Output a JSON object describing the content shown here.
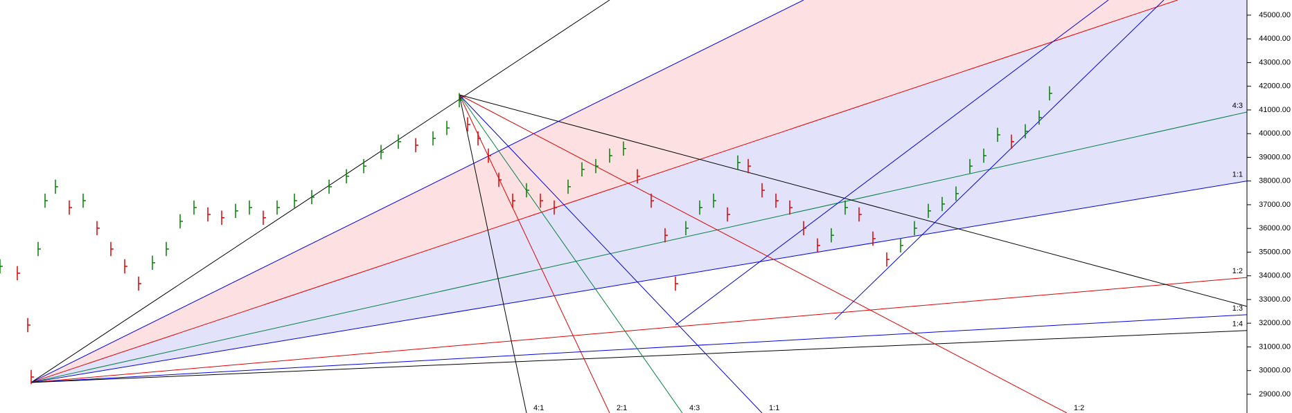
{
  "chart_data": {
    "type": "ohlc",
    "x": [
      0,
      2.5,
      4,
      4.5,
      5.5,
      6.5,
      8,
      10,
      12,
      14,
      16,
      18,
      20,
      22,
      24,
      26,
      28,
      30,
      32,
      34,
      36,
      38,
      40,
      42.5,
      45,
      47.5,
      50,
      52.5,
      55,
      57.5,
      60,
      62.5,
      64.5,
      66.3,
      67.5,
      69,
      70.5,
      72,
      74,
      76,
      78,
      80,
      82,
      84,
      86,
      88,
      90,
      92,
      94,
      96,
      97.5,
      99,
      101,
      103,
      105,
      106.5,
      108,
      110,
      112,
      114,
      116,
      118,
      120,
      122,
      124,
      126,
      128,
      130,
      132,
      134,
      136,
      138,
      140,
      142,
      144,
      146,
      148,
      150,
      151.5
    ],
    "high": [
      34700,
      34410,
      32220,
      30030,
      35430,
      37470,
      38060,
      37180,
      37470,
      36310,
      35430,
      34700,
      33970,
      34850,
      35430,
      36600,
      37180,
      36890,
      36750,
      37040,
      37180,
      36750,
      37180,
      37470,
      37620,
      38060,
      38500,
      38930,
      39520,
      39960,
      39810,
      40100,
      40540,
      41710,
      40690,
      40100,
      39370,
      38350,
      37470,
      37910,
      37470,
      37180,
      38060,
      38790,
      38930,
      39370,
      39670,
      38500,
      37470,
      36010,
      33970,
      36310,
      37180,
      37470,
      36890,
      39080,
      38930,
      37910,
      37470,
      37180,
      36310,
      35580,
      36010,
      37180,
      36890,
      35870,
      34990,
      35580,
      36310,
      37040,
      37330,
      37770,
      38930,
      39370,
      40250,
      39960,
      40400,
      40980,
      42000
    ],
    "low": [
      34100,
      33810,
      31620,
      29430,
      34830,
      36870,
      37460,
      36580,
      36870,
      35710,
      34830,
      34100,
      33370,
      34250,
      34830,
      36000,
      36580,
      36290,
      36150,
      36440,
      36580,
      36150,
      36580,
      36870,
      37020,
      37460,
      37900,
      38330,
      38920,
      39360,
      39210,
      39500,
      39940,
      41110,
      40090,
      39500,
      38770,
      37750,
      36870,
      37310,
      36870,
      36580,
      37460,
      38190,
      38330,
      38770,
      39070,
      37900,
      36870,
      35410,
      33370,
      35710,
      36580,
      36870,
      36290,
      38480,
      38330,
      37310,
      36870,
      36580,
      35710,
      34980,
      35410,
      36580,
      36290,
      35270,
      34390,
      34980,
      35710,
      36440,
      36730,
      37170,
      38330,
      38770,
      39650,
      39360,
      39800,
      40380,
      41400
    ],
    "close": [
      34400,
      34110,
      31920,
      29730,
      35130,
      37170,
      37760,
      36880,
      37170,
      36010,
      35130,
      34400,
      33670,
      34550,
      35130,
      36300,
      36880,
      36590,
      36450,
      36740,
      36880,
      36450,
      36880,
      37170,
      37320,
      37760,
      38200,
      38630,
      39220,
      39660,
      39510,
      39800,
      40240,
      41410,
      40390,
      39800,
      39070,
      38050,
      37170,
      37610,
      37170,
      36880,
      37760,
      38490,
      38630,
      39070,
      39370,
      38200,
      37170,
      35710,
      33670,
      36010,
      36880,
      37170,
      36590,
      38780,
      38630,
      37610,
      37170,
      36880,
      36010,
      35280,
      35710,
      36880,
      36590,
      35570,
      34690,
      35280,
      36010,
      36740,
      37030,
      37470,
      38630,
      39070,
      39950,
      39660,
      40100,
      40680,
      41700
    ],
    "up_color": "#008000",
    "down_color": "#e00000",
    "xlim": [
      0,
      180
    ],
    "ylim": [
      28210,
      45640
    ],
    "yticks": [
      {
        "value": 29000,
        "label": "29000.00"
      },
      {
        "value": 30000,
        "label": "30000.00"
      },
      {
        "value": 31000,
        "label": "31000.00"
      },
      {
        "value": 32000,
        "label": "32000.00"
      },
      {
        "value": 33000,
        "label": "33000.00"
      },
      {
        "value": 34000,
        "label": "34000.00"
      },
      {
        "value": 35000,
        "label": "35000.00"
      },
      {
        "value": 36000,
        "label": "36000.00"
      },
      {
        "value": 37000,
        "label": "37000.00"
      },
      {
        "value": 38000,
        "label": "38000.00"
      },
      {
        "value": 39000,
        "label": "39000.00"
      },
      {
        "value": 40000,
        "label": "40000.00"
      },
      {
        "value": 41000,
        "label": "41000.00"
      },
      {
        "value": 42000,
        "label": "42000.00"
      },
      {
        "value": 43000,
        "label": "43000.00"
      },
      {
        "value": 44000,
        "label": "44000.00"
      },
      {
        "value": 45000,
        "label": "45000.00"
      }
    ],
    "fans": [
      {
        "from": [
          4.5,
          29500
        ],
        "lines": [
          {
            "to": [
              88,
              45640
            ],
            "color": "#000000"
          },
          {
            "to": [
              116,
              45640
            ],
            "color": "#0000e0"
          },
          {
            "to": [
              170,
              45640
            ],
            "color": "#e00000"
          },
          {
            "to": [
              180,
              40910
            ],
            "color": "#008040",
            "label": "4:3"
          },
          {
            "to": [
              180,
              38000
            ],
            "color": "#0000e0",
            "label": "1:1"
          },
          {
            "to": [
              180,
              33930
            ],
            "color": "#e00000",
            "label": "1:2"
          },
          {
            "to": [
              180,
              32360
            ],
            "color": "#0000e0",
            "label": "1:3"
          },
          {
            "to": [
              180,
              31690
            ],
            "color": "#000000",
            "label": "1:4"
          }
        ],
        "fills": [
          {
            "between": [
              1,
              2
            ],
            "color": "#fde0e2"
          },
          {
            "between": [
              2,
              4
            ],
            "color": "#e2e2fa"
          }
        ]
      },
      {
        "from": [
          66.3,
          41640
        ],
        "lines": [
          {
            "to": [
              76,
              28210
            ],
            "color": "#000000",
            "label": "4:1"
          },
          {
            "to": [
              88,
              28210
            ],
            "color": "#e00000",
            "label": "2:1"
          },
          {
            "to": [
              98.5,
              28210
            ],
            "color": "#008040",
            "label": "4:3"
          },
          {
            "to": [
              110,
              28210
            ],
            "color": "#0000e0",
            "label": "1:1"
          },
          {
            "to": [
              154,
              28210
            ],
            "color": "#e00000",
            "label": "1:2"
          },
          {
            "to": [
              180,
              32710
            ],
            "color": "#000000"
          }
        ],
        "fills": []
      }
    ],
    "trendlines": [
      {
        "from": [
          97.5,
          31920
        ],
        "to": [
          160,
          45640
        ],
        "color": "#0000e0"
      },
      {
        "from": [
          120.5,
          32150
        ],
        "to": [
          168,
          45640
        ],
        "color": "#0000e0"
      }
    ]
  }
}
